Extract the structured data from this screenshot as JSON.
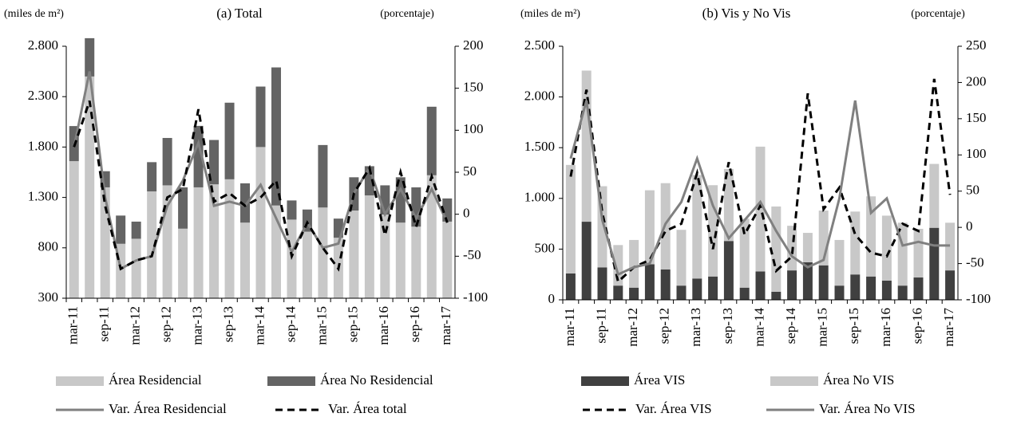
{
  "chart_data": [
    {
      "type": "bar",
      "title": "(a) Total",
      "y_label": "(miles de m²)",
      "y2_label": "(porcentaje)",
      "stacked": true,
      "categories": [
        "mar-11",
        null,
        "sep-11",
        null,
        "mar-12",
        null,
        "sep-12",
        null,
        "mar-13",
        null,
        "sep-13",
        null,
        "mar-14",
        null,
        "sep-14",
        null,
        "mar-15",
        null,
        "sep-15",
        null,
        "mar-16",
        null,
        "sep-16",
        null,
        "mar-17"
      ],
      "ylim": [
        300,
        2800
      ],
      "yticks": [
        300,
        800,
        {
          "value": 1300,
          "label": "1.300"
        },
        {
          "value": 1800,
          "label": "1.800"
        },
        {
          "value": 2300,
          "label": "2.300"
        },
        {
          "value": 2800,
          "label": "2.800"
        }
      ],
      "y2lim": [
        -100,
        200
      ],
      "y2ticks": [
        -100,
        -50,
        0,
        50,
        100,
        150,
        200
      ],
      "series": [
        {
          "name": "Área Residencial",
          "type": "bar",
          "color": "#c8c8c8",
          "values": [
            1360,
            2200,
            1100,
            540,
            590,
            1060,
            1120,
            690,
            1100,
            1130,
            1180,
            750,
            1500,
            920,
            780,
            660,
            900,
            600,
            870,
            1020,
            830,
            750,
            710,
            1220,
            760
          ]
        },
        {
          "name": "Área No Residencial",
          "type": "bar",
          "color": "#646464",
          "values": [
            348,
            380,
            160,
            280,
            170,
            290,
            470,
            410,
            610,
            440,
            760,
            390,
            600,
            1370,
            190,
            220,
            620,
            190,
            330,
            290,
            290,
            450,
            390,
            680,
            230
          ]
        },
        {
          "name": "Var. Área Residencial",
          "type": "line",
          "axis": "y2",
          "color": "#808080",
          "dashed": false,
          "values": [
            80,
            170,
            20,
            -65,
            -55,
            -50,
            10,
            40,
            85,
            10,
            15,
            10,
            35,
            -5,
            -45,
            -10,
            -40,
            -35,
            25,
            55,
            0,
            30,
            -5,
            30,
            -10
          ]
        },
        {
          "name": "Var. Área total",
          "type": "line",
          "axis": "y2",
          "color": "#000000",
          "dashed": true,
          "values": [
            80,
            135,
            10,
            -65,
            -55,
            -50,
            20,
            30,
            125,
            15,
            25,
            10,
            20,
            40,
            -50,
            -10,
            -40,
            -65,
            25,
            55,
            -25,
            50,
            -15,
            45,
            -10
          ]
        }
      ]
    },
    {
      "type": "bar",
      "title": "(b) Vis y No Vis",
      "y_label": "(miles de m²)",
      "y2_label": "(porcentaje)",
      "stacked": true,
      "categories": [
        "mar-11",
        null,
        "sep-11",
        null,
        "mar-12",
        null,
        "sep-12",
        null,
        "mar-13",
        null,
        "sep-13",
        null,
        "mar-14",
        null,
        "sep-14",
        null,
        "mar-15",
        null,
        "sep-15",
        null,
        "mar-16",
        null,
        "sep-16",
        null,
        "mar-17"
      ],
      "ylim": [
        0,
        2500
      ],
      "yticks": [
        0,
        500,
        {
          "value": 1000,
          "label": "1.000"
        },
        {
          "value": 1500,
          "label": "1.500"
        },
        {
          "value": 2000,
          "label": "2.000"
        },
        {
          "value": 2500,
          "label": "2.500"
        }
      ],
      "y2lim": [
        -100,
        250
      ],
      "y2ticks": [
        -100,
        -50,
        0,
        50,
        100,
        150,
        200,
        250
      ],
      "series": [
        {
          "name": "Área VIS",
          "type": "bar",
          "color": "#404040",
          "values": [
            260,
            770,
            320,
            140,
            120,
            350,
            300,
            140,
            210,
            230,
            580,
            120,
            280,
            80,
            290,
            370,
            340,
            140,
            250,
            230,
            190,
            140,
            220,
            710,
            290
          ]
        },
        {
          "name": "Área No VIS",
          "type": "bar",
          "color": "#c8c8c8",
          "values": [
            1070,
            1490,
            800,
            400,
            470,
            730,
            850,
            550,
            1020,
            900,
            710,
            680,
            1230,
            840,
            440,
            290,
            540,
            450,
            620,
            790,
            640,
            620,
            480,
            630,
            470
          ]
        },
        {
          "name": "Var. Área VIS",
          "type": "line",
          "axis": "y2",
          "color": "#000000",
          "dashed": true,
          "values": [
            70,
            190,
            20,
            -75,
            -55,
            -45,
            -5,
            5,
            75,
            -30,
            90,
            -10,
            30,
            -60,
            -40,
            185,
            25,
            55,
            -10,
            -35,
            -40,
            5,
            -5,
            205,
            45
          ]
        },
        {
          "name": "Var. Área No VIS",
          "type": "line",
          "axis": "y2",
          "color": "#808080",
          "dashed": false,
          "values": [
            95,
            175,
            10,
            -65,
            -55,
            -50,
            5,
            35,
            95,
            30,
            -15,
            10,
            35,
            -5,
            -40,
            -55,
            -45,
            40,
            175,
            20,
            40,
            -25,
            -20,
            -25,
            -25
          ]
        }
      ]
    }
  ]
}
